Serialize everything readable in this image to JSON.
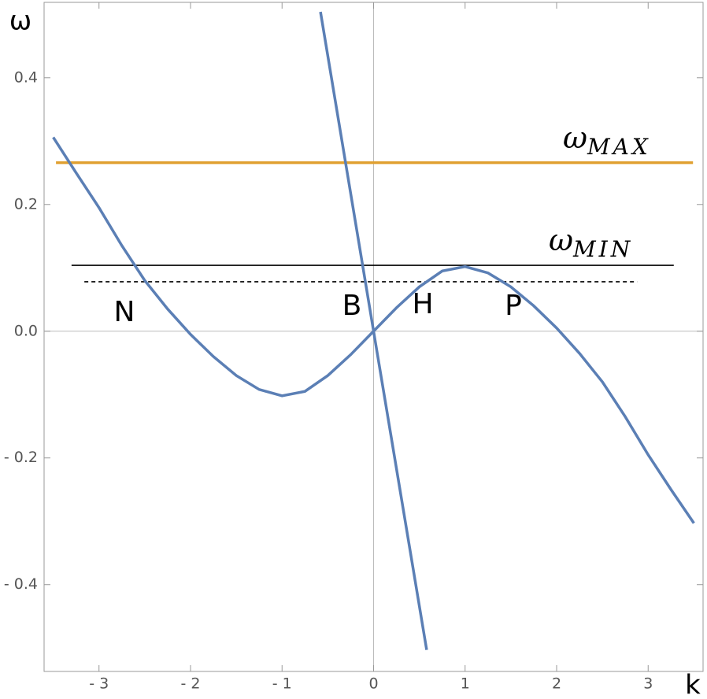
{
  "chart_data": {
    "type": "line",
    "x_label": "k",
    "y_label": "ω",
    "xlim": [
      -3.6,
      3.6
    ],
    "ylim": [
      -0.537,
      0.519
    ],
    "xticks": [
      {
        "value": -3,
        "label": "- 3"
      },
      {
        "value": -2,
        "label": "- 2"
      },
      {
        "value": -1,
        "label": "- 1"
      },
      0,
      1,
      2,
      3
    ],
    "yticks": [
      {
        "value": -0.4,
        "label": "- 0.4"
      },
      {
        "value": -0.2,
        "label": "- 0.2"
      },
      {
        "value": 0,
        "label": "0.0"
      },
      0.2,
      0.4
    ],
    "axes": true,
    "series": [
      {
        "color": "#5b7fb5",
        "x": [
          -3.5,
          -3.25,
          -3,
          -2.75,
          -2.5,
          -2.25,
          -2,
          -1.75,
          -1.5,
          -1.25,
          -1,
          -0.75,
          -0.5,
          -0.25,
          0,
          0.25,
          0.5,
          0.75,
          1,
          1.25,
          1.5,
          1.75,
          2,
          2.25,
          2.5,
          2.75,
          3,
          3.25,
          3.5
        ],
        "values": [
          0.306,
          0.25,
          0.195,
          0.135,
          0.08,
          0.035,
          -0.005,
          -0.04,
          -0.07,
          -0.092,
          -0.102,
          -0.095,
          -0.07,
          -0.037,
          0,
          0.037,
          0.07,
          0.095,
          0.102,
          0.092,
          0.07,
          0.04,
          0.005,
          -0.035,
          -0.08,
          -0.135,
          -0.195,
          -0.25,
          -0.303
        ]
      },
      {
        "color": "#5b7fb5",
        "x": [
          -0.58,
          0,
          0.58
        ],
        "values": [
          0.504,
          0,
          -0.503
        ]
      }
    ],
    "hlines": [
      {
        "value": 0.266,
        "x": [
          -3.47,
          3.49
        ],
        "color": "#e0a030",
        "style": "solid",
        "label": {
          "symbol": "ω",
          "subscript": "MAX"
        }
      },
      {
        "value": 0.104,
        "x": [
          -3.3,
          3.28
        ],
        "color": "#000000",
        "style": "solid",
        "label": {
          "symbol": "ω",
          "subscript": "MIN"
        }
      },
      {
        "value": 0.078,
        "x": [
          -3.16,
          2.88
        ],
        "color": "#000000",
        "style": "dashed"
      }
    ],
    "annotations": [
      "N",
      "B",
      "H",
      "P"
    ]
  }
}
